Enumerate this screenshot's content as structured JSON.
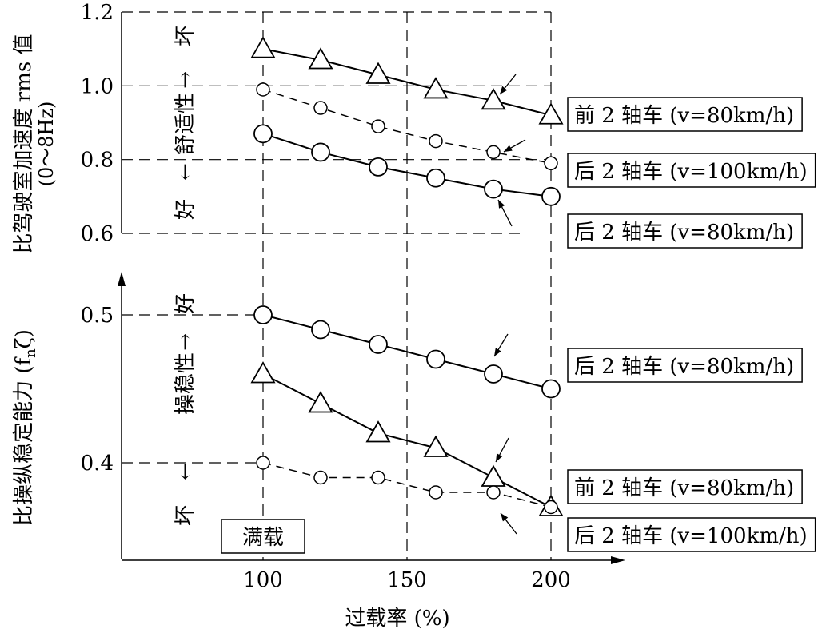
{
  "chart_data": [
    {
      "type": "line",
      "title": "",
      "xlabel": "",
      "ylabel": "比驾驶室加速度 rms 值",
      "ylabel_sub": "(0～8Hz)",
      "ylim": [
        0.6,
        1.2
      ],
      "xlim": [
        50,
        200
      ],
      "y_ticks": [
        "0.6",
        "0.8",
        "1.0",
        "1.2"
      ],
      "y_tick_values": [
        0.6,
        0.8,
        1.0,
        1.2
      ],
      "annotation": {
        "good": "好",
        "bad": "坏",
        "label": "舒适性"
      },
      "x": [
        100,
        120,
        140,
        160,
        180,
        200
      ],
      "series": [
        {
          "name": "前 2 轴车 (v=80km/h)",
          "marker": "triangle",
          "line": "solid",
          "values": [
            1.1,
            1.07,
            1.03,
            0.99,
            0.96,
            0.92
          ]
        },
        {
          "name": "后 2 轴车 (v=100km/h)",
          "marker": "circle-small",
          "line": "dashed",
          "values": [
            0.99,
            0.94,
            0.89,
            0.85,
            0.82,
            0.79
          ]
        },
        {
          "name": "后 2 轴车 (v=80km/h)",
          "marker": "circle-large",
          "line": "solid",
          "values": [
            0.87,
            0.82,
            0.78,
            0.75,
            0.72,
            0.7
          ]
        }
      ]
    },
    {
      "type": "line",
      "title": "",
      "xlabel": "过载率 (%)",
      "ylabel": "比操纵稳定能力 (f",
      "ylabel_sub_n": "n",
      "ylabel_tail": "ζ)",
      "ylim": [
        0.33,
        0.53
      ],
      "xlim": [
        50,
        220
      ],
      "x_ticks": [
        "100",
        "150",
        "200"
      ],
      "x_tick_values": [
        100,
        150,
        200
      ],
      "y_ticks": [
        "0.4",
        "0.5"
      ],
      "y_tick_values": [
        0.4,
        0.5
      ],
      "annotation": {
        "good": "好",
        "bad": "坏",
        "label": "操稳性"
      },
      "box_label": "满载",
      "x": [
        100,
        120,
        140,
        160,
        180,
        200
      ],
      "series": [
        {
          "name": "后 2 轴车 (v=80km/h)",
          "marker": "circle-large",
          "line": "solid",
          "values": [
            0.5,
            0.49,
            0.48,
            0.47,
            0.46,
            0.45
          ]
        },
        {
          "name": "前 2 轴车 (v=80km/h)",
          "marker": "triangle",
          "line": "solid",
          "values": [
            0.46,
            0.44,
            0.42,
            0.41,
            0.39,
            0.37
          ]
        },
        {
          "name": "后 2 轴车 (v=100km/h)",
          "marker": "circle-small",
          "line": "dashed",
          "values": [
            0.4,
            0.39,
            0.39,
            0.38,
            0.38,
            0.37
          ]
        }
      ]
    }
  ]
}
